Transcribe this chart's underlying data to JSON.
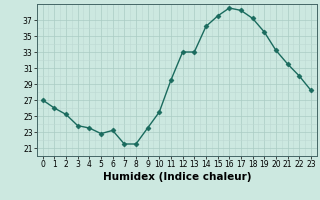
{
  "x": [
    0,
    1,
    2,
    3,
    4,
    5,
    6,
    7,
    8,
    9,
    10,
    11,
    12,
    13,
    14,
    15,
    16,
    17,
    18,
    19,
    20,
    21,
    22,
    23
  ],
  "y": [
    27,
    26,
    25.2,
    23.8,
    23.5,
    22.8,
    23.2,
    21.5,
    21.5,
    23.5,
    25.5,
    29.5,
    33,
    33,
    36.2,
    37.5,
    38.5,
    38.2,
    37.2,
    35.5,
    33.2,
    31.5,
    30,
    28.2
  ],
  "line_color": "#1a6b5e",
  "marker": "D",
  "marker_size": 2.5,
  "bg_color": "#cce8e0",
  "grid_color_major": "#aaccc4",
  "grid_color_minor": "#bdd9d3",
  "xlabel": "Humidex (Indice chaleur)",
  "ylim": [
    20,
    39
  ],
  "xlim": [
    -0.5,
    23.5
  ],
  "yticks": [
    21,
    23,
    25,
    27,
    29,
    31,
    33,
    35,
    37
  ],
  "xticks": [
    0,
    1,
    2,
    3,
    4,
    5,
    6,
    7,
    8,
    9,
    10,
    11,
    12,
    13,
    14,
    15,
    16,
    17,
    18,
    19,
    20,
    21,
    22,
    23
  ],
  "tick_fontsize": 5.5,
  "xlabel_fontsize": 7.5,
  "linewidth": 1.0
}
